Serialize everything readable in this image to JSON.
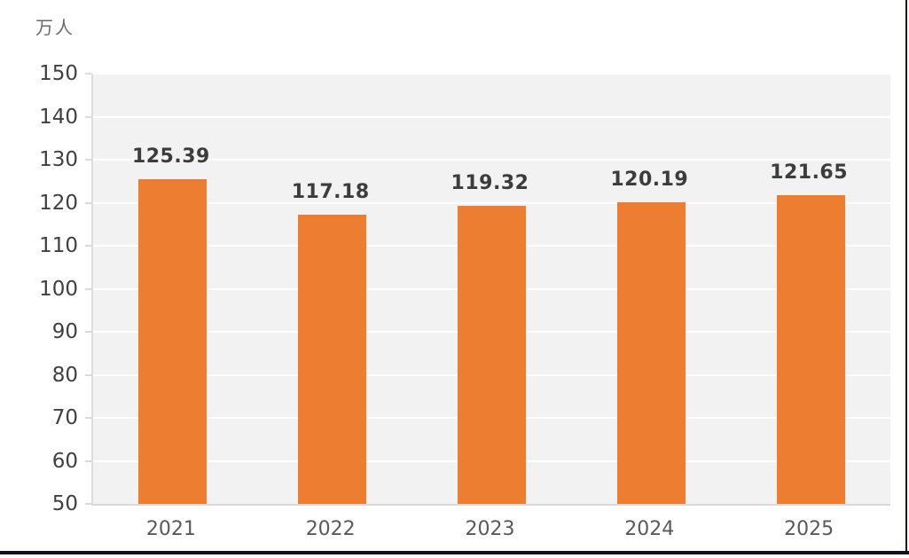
{
  "chart_data": {
    "type": "bar",
    "title": "",
    "unit_label": "万人",
    "xlabel": "",
    "ylabel": "万人",
    "categories": [
      "2021",
      "2022",
      "2023",
      "2024",
      "2025"
    ],
    "values": [
      125.39,
      117.18,
      119.32,
      120.19,
      121.65
    ],
    "data_labels": [
      "125.39",
      "117.18",
      "119.32",
      "120.19",
      "121.65"
    ],
    "ylim": [
      50,
      150
    ],
    "yticks": [
      50,
      60,
      70,
      80,
      90,
      100,
      110,
      120,
      130,
      140,
      150
    ],
    "grid": "horizontal",
    "legend_position": "none",
    "colors": {
      "bar": "#ED7D31",
      "plot_background": "#F2F2F2",
      "gridline": "#FFFFFF",
      "axis_line": "#D9D9D9",
      "y_tick_text": "#404040",
      "x_tick_text": "#595959",
      "data_label_text": "#3C3C3C",
      "unit_text": "#6A6A6A",
      "frame": "#10131F"
    }
  }
}
